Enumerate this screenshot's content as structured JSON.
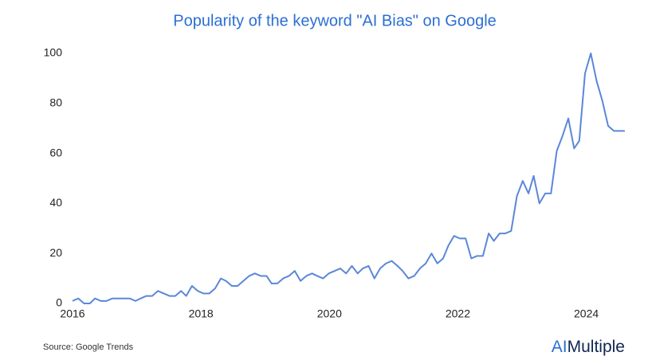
{
  "chart_data": {
    "type": "line",
    "title": "Popularity of the keyword \"AI Bias\" on Google",
    "x": [
      2016.0,
      2016.09,
      2016.18,
      2016.27,
      2016.35,
      2016.44,
      2016.53,
      2016.62,
      2016.71,
      2016.8,
      2016.89,
      2016.98,
      2017.06,
      2017.15,
      2017.24,
      2017.33,
      2017.42,
      2017.51,
      2017.6,
      2017.69,
      2017.77,
      2017.86,
      2017.95,
      2018.04,
      2018.13,
      2018.22,
      2018.31,
      2018.39,
      2018.48,
      2018.57,
      2018.66,
      2018.75,
      2018.84,
      2018.93,
      2019.02,
      2019.1,
      2019.19,
      2019.28,
      2019.37,
      2019.46,
      2019.55,
      2019.64,
      2019.73,
      2019.81,
      2019.9,
      2019.99,
      2020.08,
      2020.17,
      2020.26,
      2020.35,
      2020.44,
      2020.52,
      2020.61,
      2020.7,
      2020.79,
      2020.88,
      2020.97,
      2021.06,
      2021.14,
      2021.23,
      2021.32,
      2021.41,
      2021.5,
      2021.59,
      2021.68,
      2021.77,
      2021.85,
      2021.94,
      2022.03,
      2022.12,
      2022.21,
      2022.3,
      2022.39,
      2022.48,
      2022.56,
      2022.65,
      2022.74,
      2022.83,
      2022.92,
      2023.01,
      2023.1,
      2023.18,
      2023.27,
      2023.36,
      2023.45,
      2023.54,
      2023.63,
      2023.72,
      2023.81,
      2023.89,
      2023.98,
      2024.07,
      2024.16,
      2024.25,
      2024.34,
      2024.43,
      2024.52,
      2024.6
    ],
    "series": [
      {
        "name": "AI Bias",
        "color": "#5b87d8",
        "values": [
          1,
          2,
          0,
          0,
          2,
          1,
          1,
          2,
          2,
          2,
          2,
          1,
          2,
          3,
          3,
          5,
          4,
          3,
          3,
          5,
          3,
          7,
          5,
          4,
          4,
          6,
          10,
          9,
          7,
          7,
          9,
          11,
          12,
          11,
          11,
          8,
          8,
          10,
          11,
          13,
          9,
          11,
          12,
          11,
          10,
          12,
          13,
          14,
          12,
          15,
          12,
          14,
          15,
          10,
          14,
          16,
          17,
          15,
          13,
          10,
          11,
          14,
          16,
          20,
          16,
          18,
          23,
          27,
          26,
          26,
          18,
          19,
          19,
          28,
          25,
          28,
          28,
          29,
          43,
          49,
          44,
          51,
          40,
          44,
          44,
          61,
          67,
          74,
          62,
          65,
          92,
          100,
          89,
          81,
          71,
          69,
          69,
          69
        ]
      }
    ],
    "xlim": [
      2016,
      2024.7
    ],
    "xticks": [
      2016,
      2018,
      2020,
      2022,
      2024
    ],
    "ylim": [
      0,
      100
    ],
    "yticks": [
      0,
      20,
      40,
      60,
      80,
      100
    ],
    "grid": false,
    "source": "Source: Google Trends",
    "logo": [
      "AI",
      "Multiple"
    ]
  }
}
